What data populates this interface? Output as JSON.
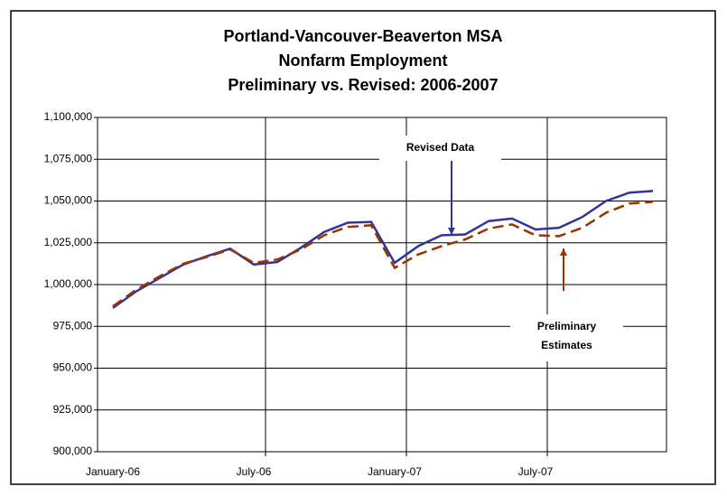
{
  "chart_data": {
    "type": "line",
    "title": [
      "Portland-Vancouver-Beaverton MSA",
      "Nonfarm Employment",
      "Preliminary vs. Revised: 2006-2007"
    ],
    "categories": [
      "January-06",
      null,
      null,
      null,
      null,
      null,
      "July-06",
      null,
      null,
      null,
      null,
      null,
      "January-07",
      null,
      null,
      null,
      null,
      null,
      "July-07",
      null,
      null,
      null,
      null,
      null
    ],
    "series": [
      {
        "color": "#333399",
        "dash": false,
        "values": [
          986000,
          996000,
          1004000,
          1012000,
          1017000,
          1021500,
          1012000,
          1013500,
          1022000,
          1031500,
          1037000,
          1037500,
          1013000,
          1023000,
          1029500,
          1030000,
          1038000,
          1039500,
          1033000,
          1034000,
          1040500,
          1050000,
          1055000,
          1056000
        ]
      },
      {
        "color": "#993300",
        "dash": true,
        "values": [
          987000,
          997000,
          1005000,
          1012500,
          1016500,
          1021000,
          1013000,
          1015000,
          1021000,
          1029500,
          1034500,
          1035500,
          1010000,
          1018000,
          1023000,
          1027000,
          1033500,
          1036000,
          1029500,
          1029000,
          1034000,
          1043000,
          1048500,
          1049500
        ]
      }
    ],
    "annotations": [
      {
        "lines": [
          "Revised Data"
        ]
      },
      {
        "lines": [
          "Preliminary",
          "Estimates"
        ]
      }
    ],
    "ylim": [
      900000,
      1100000
    ],
    "yticks": [
      {
        "value": 900000,
        "label": "900,000"
      },
      {
        "value": 925000,
        "label": "925,000"
      },
      {
        "value": 950000,
        "label": "950,000"
      },
      {
        "value": 975000,
        "label": "975,000"
      },
      {
        "value": 1000000,
        "label": "1,000,000"
      },
      {
        "value": 1025000,
        "label": "1,025,000"
      },
      {
        "value": 1050000,
        "label": "1,050,000"
      },
      {
        "value": 1075000,
        "label": "1,075,000"
      },
      {
        "value": 1100000,
        "label": "1,100,000"
      }
    ],
    "grid": true
  }
}
